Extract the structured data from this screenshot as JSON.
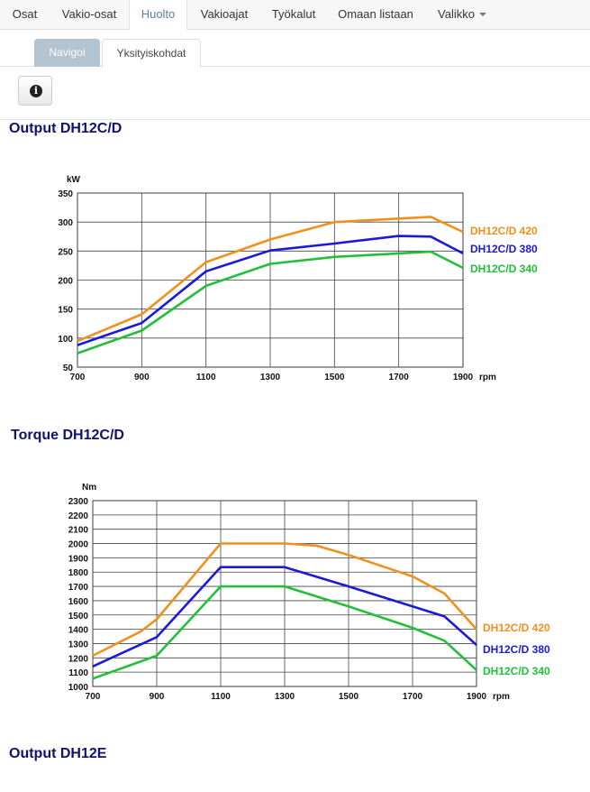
{
  "navbar": {
    "items": [
      {
        "label": "Osat"
      },
      {
        "label": "Vakio-osat"
      },
      {
        "label": "Huolto",
        "active": true
      },
      {
        "label": "Vakioajat"
      },
      {
        "label": "Työkalut"
      },
      {
        "label": "Omaan listaan"
      },
      {
        "label": "Valikko",
        "dropdown": true
      }
    ]
  },
  "subtabs": {
    "navigate": "Navigoi",
    "details": "Yksityiskohdat"
  },
  "info_icon": "info-icon",
  "colors": {
    "c420": "#f0901e",
    "c380": "#1a1ad8",
    "c340": "#22c03a",
    "title": "#10106e"
  },
  "sections": [
    {
      "title": "Output DH12C/D"
    },
    {
      "title": "Torque DH12C/D"
    },
    {
      "title": "Output DH12E"
    }
  ],
  "chart_data": [
    {
      "type": "line",
      "title": "Output DH12C/D",
      "ylabel": "kW",
      "xunit": "rpm",
      "x_ticks": [
        700,
        900,
        1100,
        1300,
        1500,
        1700,
        1900
      ],
      "y_ticks": [
        50,
        100,
        150,
        200,
        250,
        300,
        350
      ],
      "xlim": [
        700,
        1900
      ],
      "ylim": [
        50,
        350
      ],
      "series": [
        {
          "name": "DH12C/D 420",
          "color": "#f0901e",
          "points": [
            [
              700,
              95
            ],
            [
              900,
              141
            ],
            [
              1100,
              231
            ],
            [
              1300,
              270
            ],
            [
              1500,
              300
            ],
            [
              1700,
              306
            ],
            [
              1800,
              309
            ],
            [
              1900,
              283
            ]
          ]
        },
        {
          "name": "DH12C/D 380",
          "color": "#1a1ad8",
          "points": [
            [
              700,
              88
            ],
            [
              900,
              126
            ],
            [
              1100,
              215
            ],
            [
              1300,
              251
            ],
            [
              1500,
              263
            ],
            [
              1700,
              276
            ],
            [
              1800,
              275
            ],
            [
              1900,
              246
            ]
          ]
        },
        {
          "name": "DH12C/D 340",
          "color": "#22c03a",
          "points": [
            [
              700,
              74
            ],
            [
              900,
              113
            ],
            [
              1100,
              190
            ],
            [
              1300,
              228
            ],
            [
              1500,
              240
            ],
            [
              1700,
              246
            ],
            [
              1800,
              249
            ],
            [
              1900,
              221
            ]
          ]
        }
      ]
    },
    {
      "type": "line",
      "title": "Torque DH12C/D",
      "ylabel": "Nm",
      "xunit": "rpm",
      "x_ticks": [
        700,
        900,
        1100,
        1300,
        1500,
        1700,
        1900
      ],
      "y_ticks": [
        1000,
        1100,
        1200,
        1300,
        1400,
        1500,
        1600,
        1700,
        1800,
        1900,
        2000,
        2100,
        2200,
        2300
      ],
      "xlim": [
        700,
        1900
      ],
      "ylim": [
        1000,
        2300
      ],
      "series": [
        {
          "name": "DH12C/D 420",
          "color": "#f0901e",
          "points": [
            [
              700,
              1215
            ],
            [
              850,
              1385
            ],
            [
              900,
              1470
            ],
            [
              1100,
              2000
            ],
            [
              1300,
              2000
            ],
            [
              1400,
              1985
            ],
            [
              1500,
              1920
            ],
            [
              1700,
              1770
            ],
            [
              1800,
              1650
            ],
            [
              1900,
              1400
            ]
          ]
        },
        {
          "name": "DH12C/D 380",
          "color": "#1a1ad8",
          "points": [
            [
              700,
              1140
            ],
            [
              900,
              1345
            ],
            [
              1100,
              1835
            ],
            [
              1300,
              1835
            ],
            [
              1500,
              1700
            ],
            [
              1700,
              1560
            ],
            [
              1800,
              1490
            ],
            [
              1900,
              1290
            ]
          ]
        },
        {
          "name": "DH12C/D 340",
          "color": "#22c03a",
          "points": [
            [
              700,
              1055
            ],
            [
              900,
              1215
            ],
            [
              1100,
              1700
            ],
            [
              1300,
              1700
            ],
            [
              1500,
              1560
            ],
            [
              1700,
              1410
            ],
            [
              1800,
              1320
            ],
            [
              1900,
              1115
            ]
          ]
        }
      ]
    }
  ]
}
